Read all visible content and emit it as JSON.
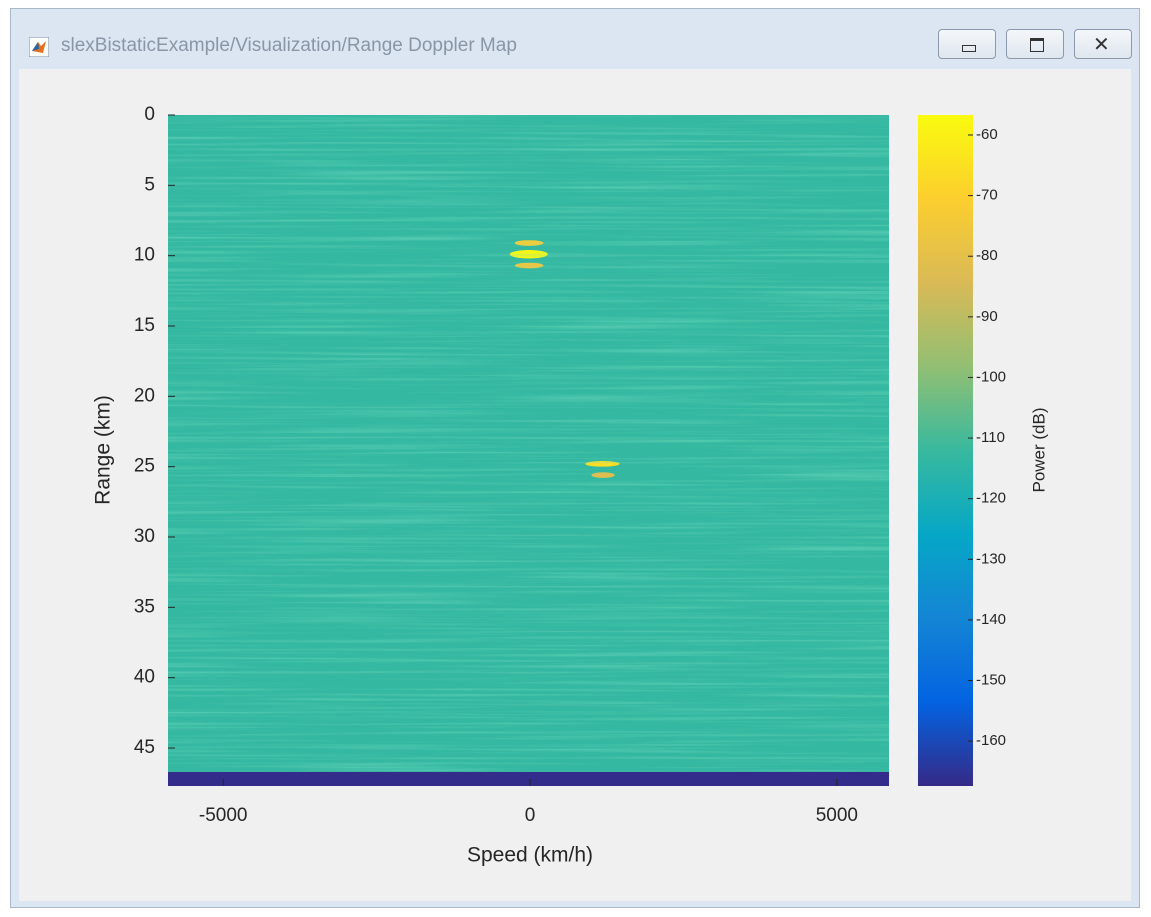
{
  "window": {
    "title": "slexBistaticExample/Visualization/Range Doppler Map"
  },
  "chart_data": {
    "type": "heatmap",
    "xlabel": "Speed (km/h)",
    "ylabel": "Range (km)",
    "xlim": [
      -5900,
      5850
    ],
    "xticks": [
      -5000,
      0,
      5000
    ],
    "ylim": [
      0,
      47.7
    ],
    "yticks": [
      0,
      5,
      10,
      15,
      20,
      25,
      30,
      35,
      40,
      45
    ],
    "y_reversed": true,
    "colorbar_label": "Power (dB)",
    "clim": [
      -167.4,
      -56.7
    ],
    "cticks": [
      -160,
      -150,
      -140,
      -130,
      -120,
      -110,
      -100,
      -90,
      -80,
      -70,
      -60
    ],
    "colormap": [
      "#352a87",
      "#0363e1",
      "#1485d4",
      "#06a7c6",
      "#38b99e",
      "#92bf73",
      "#d9ba56",
      "#fcce2e",
      "#f9fb0e"
    ],
    "cells": [
      {
        "x": [
          -5900,
          5850
        ],
        "y": [
          0,
          46.7
        ],
        "value": -113
      },
      {
        "x": [
          -5900,
          5850
        ],
        "y": [
          46.7,
          47.7
        ],
        "value": -167
      },
      {
        "x": [
          -330,
          290
        ],
        "y": [
          9.6,
          10.2
        ],
        "value": -58
      },
      {
        "x": [
          -250,
          220
        ],
        "y": [
          8.9,
          9.3
        ],
        "value": -72
      },
      {
        "x": [
          -250,
          220
        ],
        "y": [
          10.5,
          10.9
        ],
        "value": -76
      },
      {
        "x": [
          900,
          1460
        ],
        "y": [
          24.6,
          25.0
        ],
        "value": -66
      },
      {
        "x": [
          1000,
          1380
        ],
        "y": [
          25.4,
          25.8
        ],
        "value": -82
      }
    ]
  }
}
